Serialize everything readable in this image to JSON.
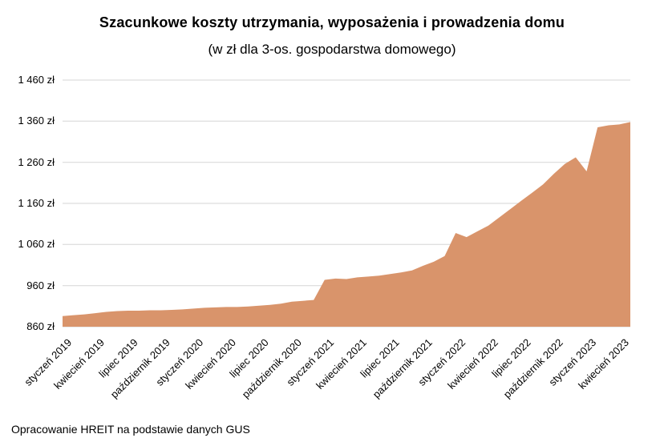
{
  "title": "Szacunkowe koszty utrzymania, wyposażenia i prowadzenia domu",
  "subtitle": "(w zł dla 3-os. gospodarstwa domowego)",
  "source": "Opracowanie HREIT na podstawie danych GUS",
  "chart_data": {
    "type": "area",
    "title": "Szacunkowe koszty utrzymania, wyposażenia i prowadzenia domu",
    "subtitle": "(w zł dla 3-os. gospodarstwa domowego)",
    "xlabel": "",
    "ylabel": "",
    "ylim": [
      860,
      1460
    ],
    "grid": true,
    "legend": "none",
    "fill_color": "#d9946b",
    "grid_color": "#d6d6d6",
    "x_start": "styczeń 2019",
    "x_interval_months": 1,
    "tick_every": 3,
    "x_tick_labels": [
      "styczeń 2019",
      "kwiecień 2019",
      "lipiec 2019",
      "październik 2019",
      "styczeń 2020",
      "kwiecień 2020",
      "lipiec 2020",
      "październik 2020",
      "styczeń 2021",
      "kwiecień 2021",
      "lipiec 2021",
      "październik 2021",
      "styczeń 2022",
      "kwiecień 2022",
      "lipiec 2022",
      "październik 2022",
      "styczeń 2023",
      "kwiecień 2023"
    ],
    "y_ticks": [
      {
        "value": 860,
        "label": "860 zł"
      },
      {
        "value": 960,
        "label": "960 zł"
      },
      {
        "value": 1060,
        "label": "1 060 zł"
      },
      {
        "value": 1160,
        "label": "1 160 zł"
      },
      {
        "value": 1260,
        "label": "1 260 zł"
      },
      {
        "value": 1360,
        "label": "1 360 zł"
      },
      {
        "value": 1460,
        "label": "1 460 zł"
      }
    ],
    "values": [
      886,
      888,
      890,
      893,
      896,
      898,
      899,
      899,
      900,
      900,
      901,
      902,
      904,
      906,
      907,
      908,
      908,
      909,
      911,
      913,
      916,
      921,
      923,
      925,
      974,
      977,
      976,
      980,
      982,
      984,
      988,
      992,
      997,
      1008,
      1018,
      1032,
      1088,
      1078,
      1092,
      1106,
      1126,
      1146,
      1166,
      1186,
      1206,
      1232,
      1256,
      1272,
      1238,
      1345,
      1350,
      1352,
      1358
    ]
  }
}
